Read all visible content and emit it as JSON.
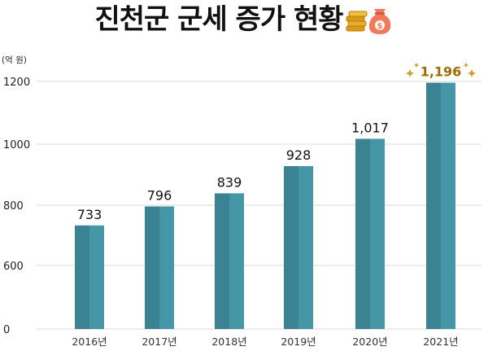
{
  "title": "진천군 군세 증가 현황",
  "icons": [
    "coin-stack-icon",
    "money-bag-icon",
    "sparkle-icon"
  ],
  "colors": {
    "bar": "#4596a6",
    "bar_shade": "#3b8393",
    "highlight_label": "#a06c00",
    "grid": "#d8d8d8"
  },
  "chart_data": {
    "type": "bar",
    "title": "진천군 군세 증가 현황",
    "unit_label": "(억 원)",
    "categories": [
      "2016년",
      "2017년",
      "2018년",
      "2019년",
      "2020년",
      "2021년"
    ],
    "values": [
      733,
      796,
      839,
      928,
      1017,
      1196
    ],
    "value_labels": [
      "733",
      "796",
      "839",
      "928",
      "1,017",
      "1,196"
    ],
    "y_ticks": [
      0,
      600,
      800,
      1000,
      1200
    ],
    "grid": true,
    "highlighted_category": "2021년"
  }
}
